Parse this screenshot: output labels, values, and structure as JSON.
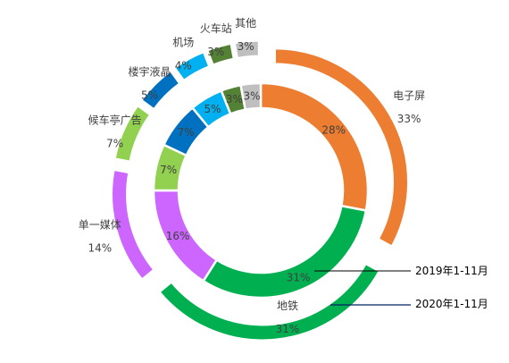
{
  "chart_data": {
    "type": "pie",
    "subtype": "doughnut",
    "categories": [
      "电子屏",
      "地铁",
      "单一媒体",
      "候车亭广告",
      "楼宇液晶",
      "机场",
      "火车站",
      "其他"
    ],
    "series": [
      {
        "name": "2019年1-11月",
        "ring": "inner",
        "values": [
          28,
          31,
          16,
          7,
          7,
          5,
          3,
          3
        ],
        "labels": [
          "28%",
          "31%",
          "16%",
          "7%",
          "7%",
          "5%",
          "3%",
          "3%"
        ]
      },
      {
        "name": "2020年1-11月",
        "ring": "outer",
        "values": [
          33,
          31,
          14,
          7,
          5,
          4,
          3,
          3
        ],
        "labels": [
          "33%",
          "31%",
          "14%",
          "7%",
          "5%",
          "4%",
          "3%",
          "3%"
        ]
      }
    ],
    "colors": [
      "#ED7D31",
      "#00B050",
      "#CC66FF",
      "#92D050",
      "#0070C0",
      "#00B0F0",
      "#548235",
      "#BFBFBF"
    ],
    "legend": "callout-right",
    "legend_line_colors": [
      "#000000",
      "#002060"
    ]
  }
}
